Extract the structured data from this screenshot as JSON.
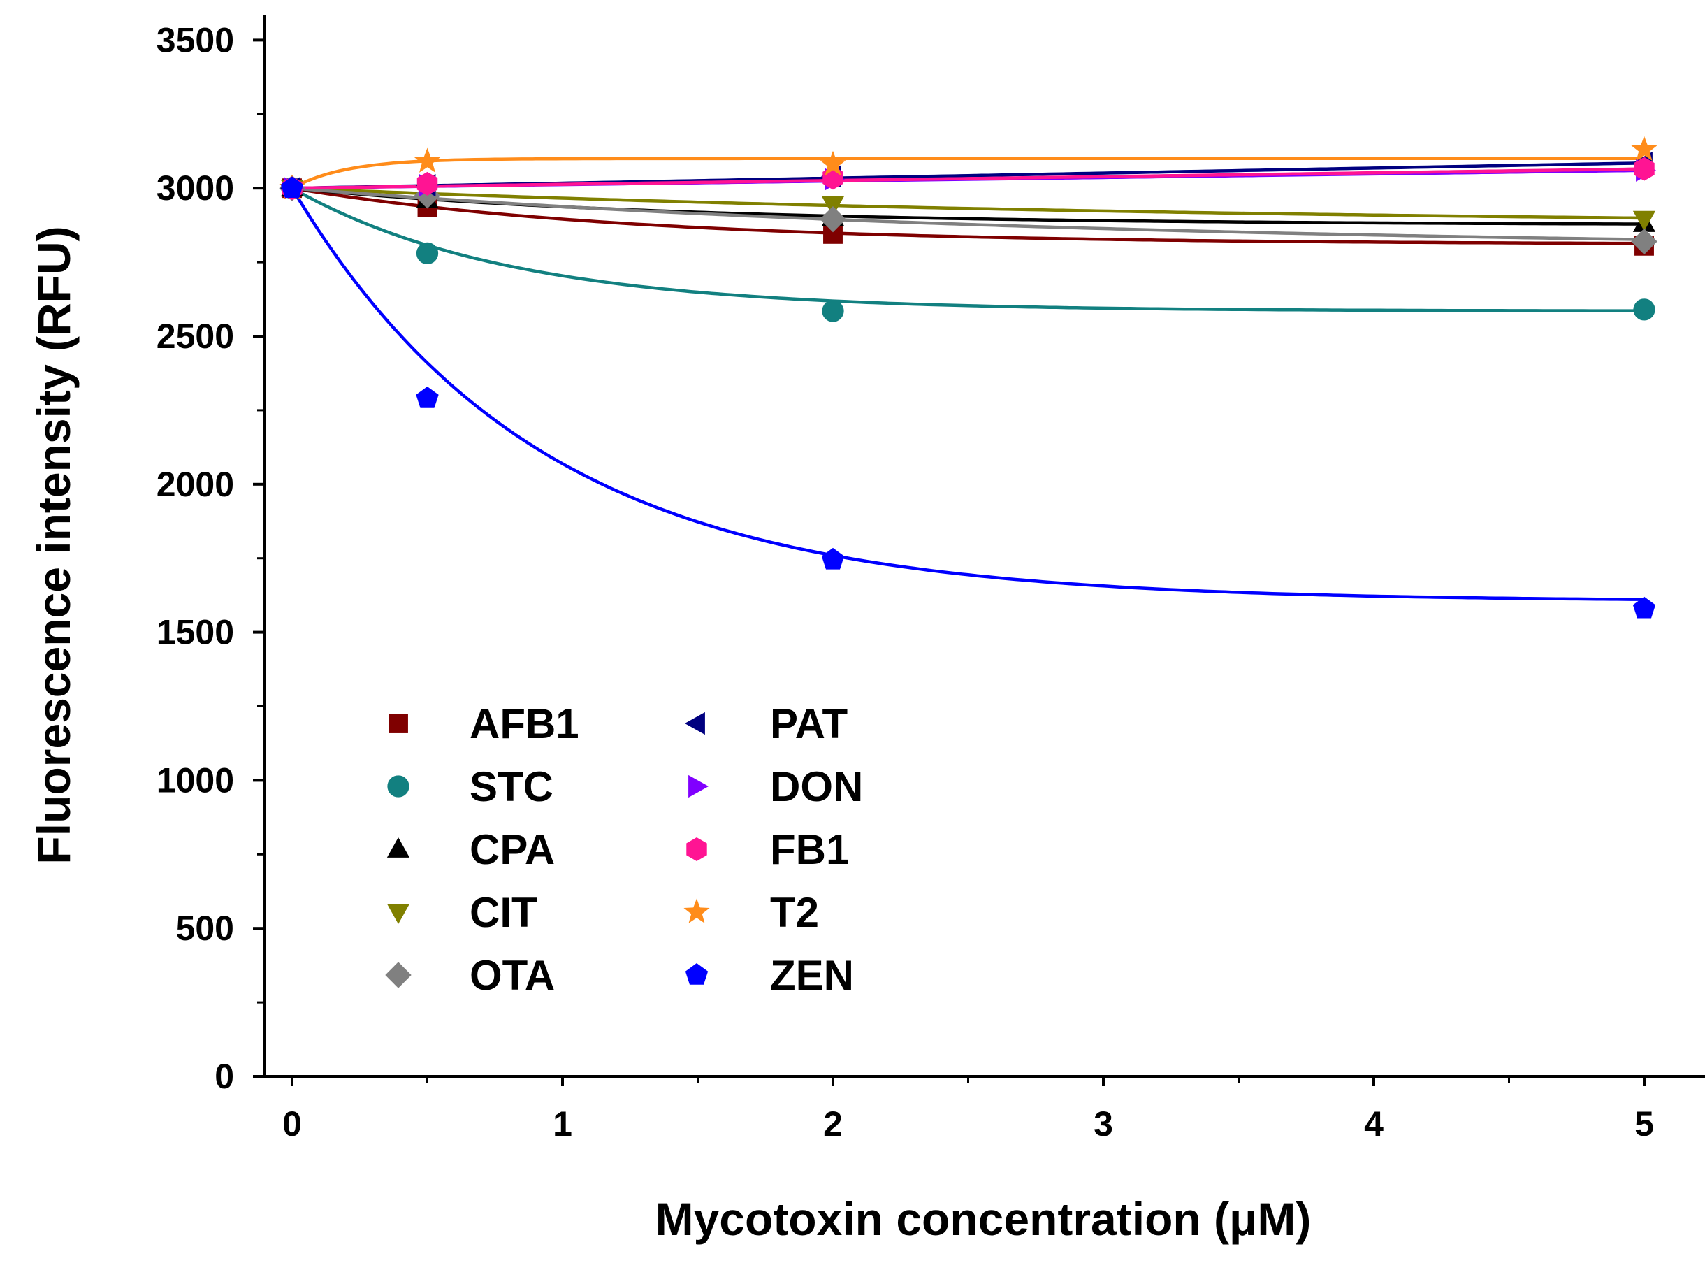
{
  "chart_data": {
    "type": "scatter",
    "xlabel": "Mycotoxin concentration (μM)",
    "ylabel": "Fluorescence intensity (RFU)",
    "x": [
      0,
      0.5,
      2,
      5
    ],
    "xlim": [
      -0.1,
      5.2
    ],
    "ylim": [
      0,
      3600
    ],
    "x_ticks": [
      "0",
      "1",
      "2",
      "3",
      "4",
      "5"
    ],
    "y_ticks": [
      "0",
      "500",
      "1000",
      "1500",
      "2000",
      "2500",
      "3000",
      "3500"
    ],
    "grid": false,
    "legend_position": "bottom-left",
    "series": [
      {
        "name": "AFB1",
        "marker": "square",
        "color": "#7f0000",
        "values": [
          3000,
          2935,
          2845,
          2805
        ],
        "curve": {
          "plateau": 2810,
          "rate": 0.8
        }
      },
      {
        "name": "STC",
        "marker": "circle",
        "color": "#128080",
        "values": [
          3000,
          2780,
          2585,
          2590
        ],
        "curve": {
          "plateau": 2585,
          "rate": 1.25
        }
      },
      {
        "name": "CPA",
        "marker": "triangle-up",
        "color": "#000000",
        "values": [
          3000,
          2960,
          2900,
          2880
        ],
        "curve": {
          "plateau": 2875,
          "rate": 0.7
        }
      },
      {
        "name": "CIT",
        "marker": "triangle-down",
        "color": "#808000",
        "values": [
          3000,
          2985,
          2945,
          2895
        ],
        "curve": {
          "plateau": 2870,
          "rate": 0.3
        }
      },
      {
        "name": "OTA",
        "marker": "diamond",
        "color": "#808080",
        "values": [
          3000,
          2975,
          2895,
          2820
        ],
        "curve": {
          "plateau": 2790,
          "rate": 0.35
        }
      },
      {
        "name": "PAT",
        "marker": "triangle-left",
        "color": "#000080",
        "values": [
          3000,
          3010,
          3040,
          3085
        ],
        "curve": {
          "plateau": 3085,
          "rate": 0
        }
      },
      {
        "name": "DON",
        "marker": "triangle-right",
        "color": "#8000ff",
        "values": [
          3000,
          3010,
          3030,
          3060
        ],
        "curve": {
          "plateau": 3060,
          "rate": 0
        }
      },
      {
        "name": "FB1",
        "marker": "hexagon",
        "color": "#ff1493",
        "values": [
          3000,
          3015,
          3035,
          3065
        ],
        "curve": {
          "plateau": 3065,
          "rate": 0
        }
      },
      {
        "name": "T2",
        "marker": "star",
        "color": "#ff8c1a",
        "values": [
          3000,
          3090,
          3080,
          3130
        ],
        "curve": {
          "plateau": 3100,
          "rate": 5
        }
      },
      {
        "name": "ZEN",
        "marker": "pentagon",
        "color": "#0000ff",
        "values": [
          3000,
          2290,
          1745,
          1580
        ],
        "curve": {
          "plateau": 1605,
          "rate": 1.1
        }
      }
    ]
  }
}
